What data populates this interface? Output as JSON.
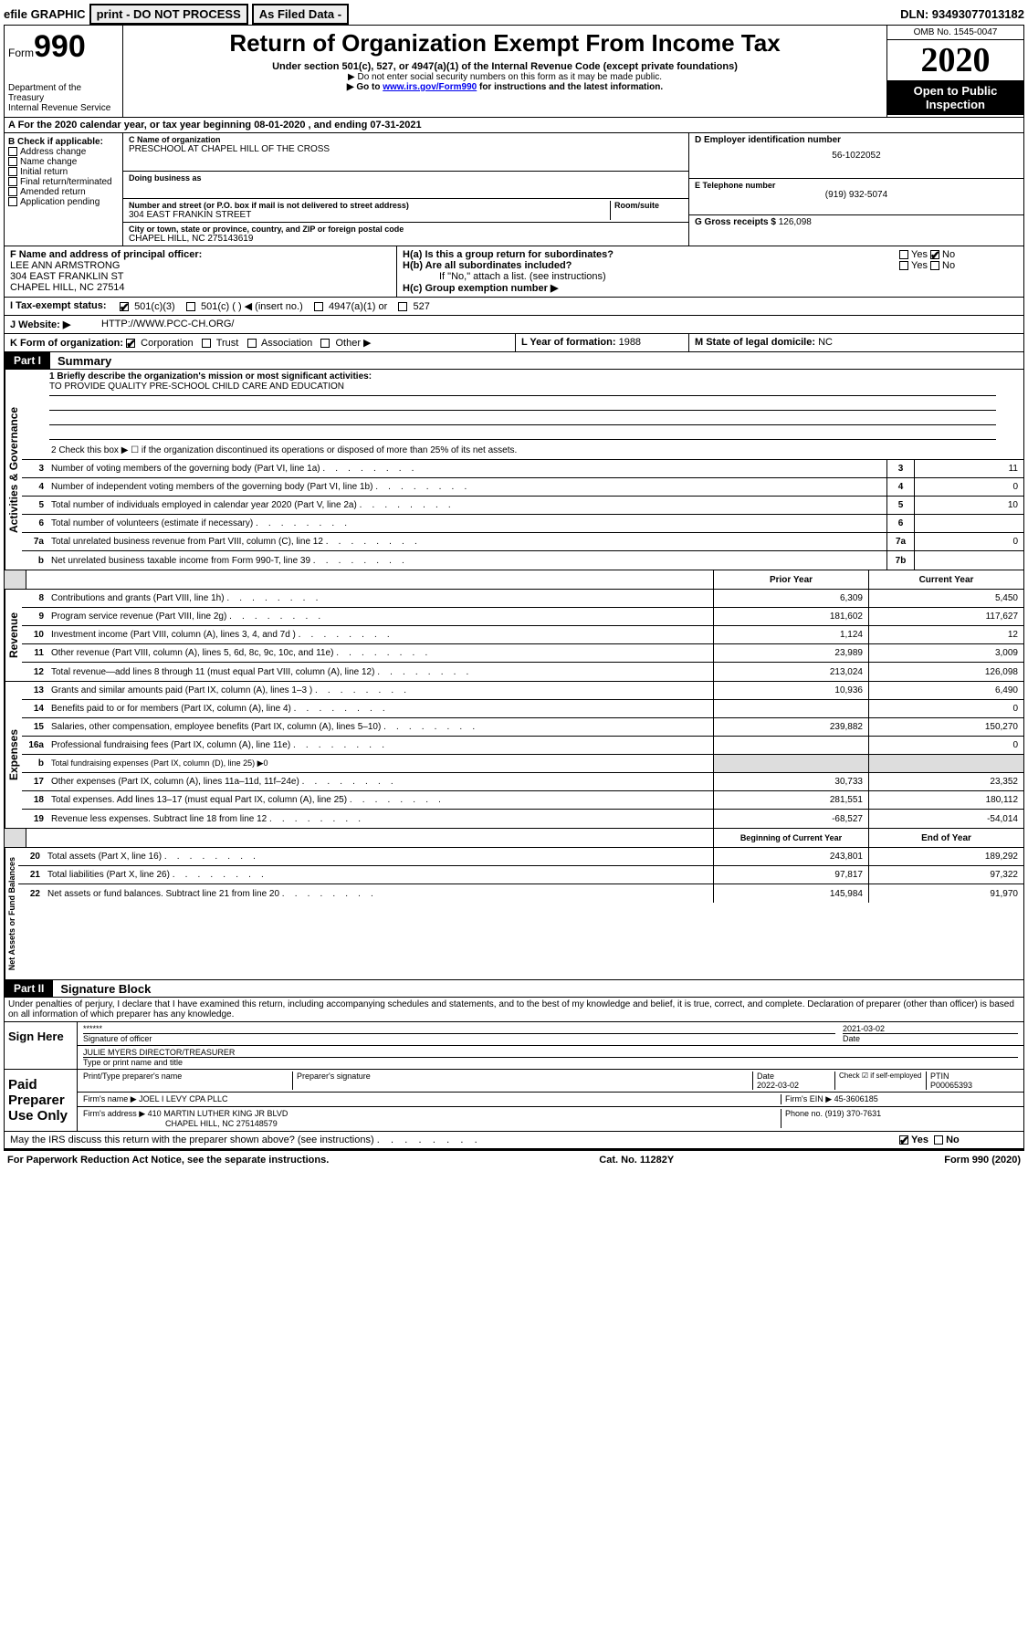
{
  "topbar": {
    "efile": "efile GRAPHIC",
    "print": "print - DO NOT PROCESS",
    "asfiled": "As Filed Data -",
    "dln": "DLN: 93493077013182"
  },
  "header": {
    "form_prefix": "Form",
    "form_number": "990",
    "dept": "Department of the Treasury\nInternal Revenue Service",
    "title": "Return of Organization Exempt From Income Tax",
    "subtitle": "Under section 501(c), 527, or 4947(a)(1) of the Internal Revenue Code (except private foundations)",
    "note1": "▶ Do not enter social security numbers on this form as it may be made public.",
    "note2_pre": "▶ Go to ",
    "note2_link": "www.irs.gov/Form990",
    "note2_post": " for instructions and the latest information.",
    "omb": "OMB No. 1545-0047",
    "year": "2020",
    "open": "Open to Public Inspection"
  },
  "row_a": "A  For the 2020 calendar year, or tax year beginning 08-01-2020   , and ending 07-31-2021",
  "col_b": {
    "title": "B Check if applicable:",
    "items": [
      "Address change",
      "Name change",
      "Initial return",
      "Final return/terminated",
      "Amended return",
      "Application pending"
    ]
  },
  "col_c": {
    "name_label": "C Name of organization",
    "name": "PRESCHOOL AT CHAPEL HILL OF THE CROSS",
    "dba_label": "Doing business as",
    "dba": "",
    "addr_label": "Number and street (or P.O. box if mail is not delivered to street address)",
    "room_label": "Room/suite",
    "addr": "304 EAST FRANKIN STREET",
    "city_label": "City or town, state or province, country, and ZIP or foreign postal code",
    "city": "CHAPEL HILL, NC  275143619"
  },
  "col_d": {
    "ein_label": "D Employer identification number",
    "ein": "56-1022052",
    "tel_label": "E Telephone number",
    "tel": "(919) 932-5074",
    "gross_label": "G Gross receipts $",
    "gross": "126,098"
  },
  "row_f": {
    "label": "F  Name and address of principal officer:",
    "name": "LEE ANN ARMSTRONG",
    "addr1": "304 EAST FRANKLIN ST",
    "addr2": "CHAPEL HILL, NC  27514"
  },
  "row_h": {
    "ha": "H(a)  Is this a group return for subordinates?",
    "hb": "H(b)  Are all subordinates included?",
    "hb_note": "If \"No,\" attach a list. (see instructions)",
    "hc": "H(c)  Group exemption number ▶",
    "yes": "Yes",
    "no": "No"
  },
  "row_i": {
    "label": "I  Tax-exempt status:",
    "o1": "501(c)(3)",
    "o2": "501(c) (  ) ◀ (insert no.)",
    "o3": "4947(a)(1) or",
    "o4": "527"
  },
  "row_j": {
    "label": "J  Website: ▶",
    "val": "HTTP://WWW.PCC-CH.ORG/"
  },
  "row_k": {
    "label": "K Form of organization:",
    "o1": "Corporation",
    "o2": "Trust",
    "o3": "Association",
    "o4": "Other ▶"
  },
  "row_l": {
    "label": "L Year of formation:",
    "val": "1988"
  },
  "row_m": {
    "label": "M State of legal domicile:",
    "val": "NC"
  },
  "part1": {
    "label": "Part I",
    "title": "Summary"
  },
  "mission": {
    "q1": "1 Briefly describe the organization's mission or most significant activities:",
    "text": "TO PROVIDE QUALITY PRE-SCHOOL CHILD CARE AND EDUCATION",
    "q2": "2  Check this box ▶ ☐  if the organization discontinued its operations or disposed of more than 25% of its net assets."
  },
  "s1_label": "Activities & Governance",
  "s1_lines": [
    {
      "n": "3",
      "t": "Number of voting members of the governing body (Part VI, line 1a)",
      "box": "3",
      "v": "11"
    },
    {
      "n": "4",
      "t": "Number of independent voting members of the governing body (Part VI, line 1b)",
      "box": "4",
      "v": "0"
    },
    {
      "n": "5",
      "t": "Total number of individuals employed in calendar year 2020 (Part V, line 2a)",
      "box": "5",
      "v": "10"
    },
    {
      "n": "6",
      "t": "Total number of volunteers (estimate if necessary)",
      "box": "6",
      "v": ""
    },
    {
      "n": "7a",
      "t": "Total unrelated business revenue from Part VIII, column (C), line 12",
      "box": "7a",
      "v": "0"
    },
    {
      "n": "b",
      "t": "Net unrelated business taxable income from Form 990-T, line 39",
      "box": "7b",
      "v": ""
    }
  ],
  "col_hdr": {
    "prior": "Prior Year",
    "curr": "Current Year",
    "beg": "Beginning of Current Year",
    "end": "End of Year"
  },
  "s2_label": "Revenue",
  "s2_lines": [
    {
      "n": "8",
      "t": "Contributions and grants (Part VIII, line 1h)",
      "p": "6,309",
      "c": "5,450"
    },
    {
      "n": "9",
      "t": "Program service revenue (Part VIII, line 2g)",
      "p": "181,602",
      "c": "117,627"
    },
    {
      "n": "10",
      "t": "Investment income (Part VIII, column (A), lines 3, 4, and 7d )",
      "p": "1,124",
      "c": "12"
    },
    {
      "n": "11",
      "t": "Other revenue (Part VIII, column (A), lines 5, 6d, 8c, 9c, 10c, and 11e)",
      "p": "23,989",
      "c": "3,009"
    },
    {
      "n": "12",
      "t": "Total revenue—add lines 8 through 11 (must equal Part VIII, column (A), line 12)",
      "p": "213,024",
      "c": "126,098"
    }
  ],
  "s3_label": "Expenses",
  "s3_lines": [
    {
      "n": "13",
      "t": "Grants and similar amounts paid (Part IX, column (A), lines 1–3 )",
      "p": "10,936",
      "c": "6,490"
    },
    {
      "n": "14",
      "t": "Benefits paid to or for members (Part IX, column (A), line 4)",
      "p": "",
      "c": "0"
    },
    {
      "n": "15",
      "t": "Salaries, other compensation, employee benefits (Part IX, column (A), lines 5–10)",
      "p": "239,882",
      "c": "150,270"
    },
    {
      "n": "16a",
      "t": "Professional fundraising fees (Part IX, column (A), line 11e)",
      "p": "",
      "c": "0"
    },
    {
      "n": "b",
      "t": "Total fundraising expenses (Part IX, column (D), line 25) ▶0",
      "p": null,
      "c": null,
      "grey": true
    },
    {
      "n": "17",
      "t": "Other expenses (Part IX, column (A), lines 11a–11d, 11f–24e)",
      "p": "30,733",
      "c": "23,352"
    },
    {
      "n": "18",
      "t": "Total expenses. Add lines 13–17 (must equal Part IX, column (A), line 25)",
      "p": "281,551",
      "c": "180,112"
    },
    {
      "n": "19",
      "t": "Revenue less expenses. Subtract line 18 from line 12",
      "p": "-68,527",
      "c": "-54,014"
    }
  ],
  "s4_label": "Net Assets or Fund Balances",
  "s4_lines": [
    {
      "n": "20",
      "t": "Total assets (Part X, line 16)",
      "p": "243,801",
      "c": "189,292"
    },
    {
      "n": "21",
      "t": "Total liabilities (Part X, line 26)",
      "p": "97,817",
      "c": "97,322"
    },
    {
      "n": "22",
      "t": "Net assets or fund balances. Subtract line 21 from line 20",
      "p": "145,984",
      "c": "91,970"
    }
  ],
  "part2": {
    "label": "Part II",
    "title": "Signature Block"
  },
  "perjury": "Under penalties of perjury, I declare that I have examined this return, including accompanying schedules and statements, and to the best of my knowledge and belief, it is true, correct, and complete. Declaration of preparer (other than officer) is based on all information of which preparer has any knowledge.",
  "sign": {
    "here": "Sign Here",
    "stars": "******",
    "sig_of": "Signature of officer",
    "date_label": "Date",
    "date": "2021-03-02",
    "officer": "JULIE MYERS  DIRECTOR/TREASURER",
    "type_label": "Type or print name and title"
  },
  "paid": {
    "label": "Paid Preparer Use Only",
    "h1": "Print/Type preparer's name",
    "h2": "Preparer's signature",
    "h3": "Date",
    "h3v": "2022-03-02",
    "h4": "Check ☑ if self-employed",
    "h5": "PTIN",
    "h5v": "P00065393",
    "firm_name_label": "Firm's name     ▶",
    "firm_name": "JOEL I LEVY CPA PLLC",
    "firm_ein_label": "Firm's EIN ▶",
    "firm_ein": "45-3606185",
    "firm_addr_label": "Firm's address ▶",
    "firm_addr1": "410 MARTIN LUTHER KING JR BLVD",
    "firm_addr2": "CHAPEL HILL, NC 275148579",
    "phone_label": "Phone no.",
    "phone": "(919) 370-7631"
  },
  "discuss": "May the IRS discuss this return with the preparer shown above? (see instructions)",
  "footer": {
    "l": "For Paperwork Reduction Act Notice, see the separate instructions.",
    "m": "Cat. No. 11282Y",
    "r": "Form 990 (2020)"
  }
}
